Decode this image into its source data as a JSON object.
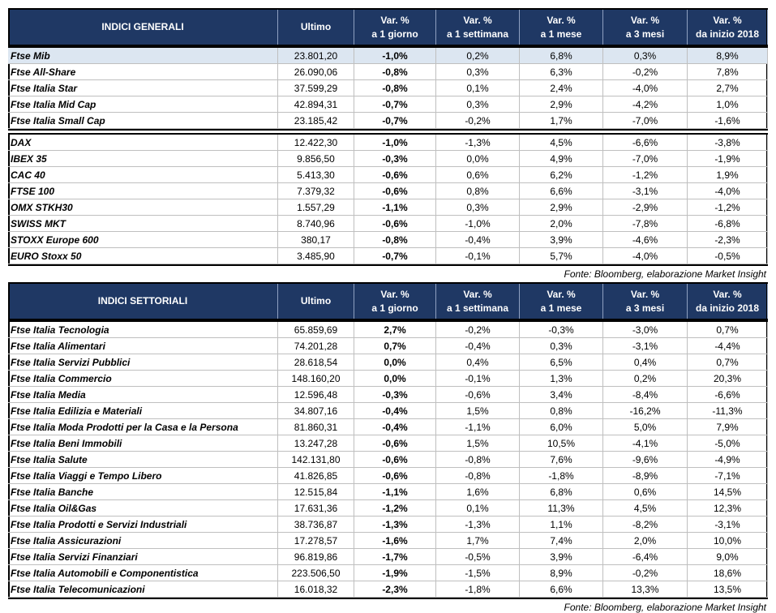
{
  "tables": [
    {
      "header": [
        [
          "INDICI GENERALI"
        ],
        [
          "Ultimo"
        ],
        [
          "Var. %",
          "a 1 giorno"
        ],
        [
          "Var. %",
          "a 1 settimana"
        ],
        [
          "Var. %",
          "a 1 mese"
        ],
        [
          "Var. %",
          "a 3 mesi"
        ],
        [
          "Var. %",
          "da inizio 2018"
        ]
      ],
      "groups": [
        [
          [
            "Ftse Mib",
            "23.801,20",
            "-1,0%",
            "0,2%",
            "6,8%",
            "0,3%",
            "8,9%"
          ],
          [
            "Ftse All-Share",
            "26.090,06",
            "-0,8%",
            "0,3%",
            "6,3%",
            "-0,2%",
            "7,8%"
          ],
          [
            "Ftse Italia Star",
            "37.599,29",
            "-0,8%",
            "0,1%",
            "2,4%",
            "-4,0%",
            "2,7%"
          ],
          [
            "Ftse Italia Mid Cap",
            "42.894,31",
            "-0,7%",
            "0,3%",
            "2,9%",
            "-4,2%",
            "1,0%"
          ],
          [
            "Ftse Italia Small Cap",
            "23.185,42",
            "-0,7%",
            "-0,2%",
            "1,7%",
            "-7,0%",
            "-1,6%"
          ]
        ],
        [
          [
            "DAX",
            "12.422,30",
            "-1,0%",
            "-1,3%",
            "4,5%",
            "-6,6%",
            "-3,8%"
          ],
          [
            "IBEX 35",
            "9.856,50",
            "-0,3%",
            "0,0%",
            "4,9%",
            "-7,0%",
            "-1,9%"
          ],
          [
            "CAC 40",
            "5.413,30",
            "-0,6%",
            "0,6%",
            "6,2%",
            "-1,2%",
            "1,9%"
          ],
          [
            "FTSE 100",
            "7.379,32",
            "-0,6%",
            "0,8%",
            "6,6%",
            "-3,1%",
            "-4,0%"
          ],
          [
            "OMX STKH30",
            "1.557,29",
            "-1,1%",
            "0,3%",
            "2,9%",
            "-2,9%",
            "-1,2%"
          ],
          [
            "SWISS MKT",
            "8.740,96",
            "-0,6%",
            "-1,0%",
            "2,0%",
            "-7,8%",
            "-6,8%"
          ],
          [
            "STOXX Europe 600",
            "380,17",
            "-0,8%",
            "-0,4%",
            "3,9%",
            "-4,6%",
            "-2,3%"
          ],
          [
            "EURO Stoxx 50",
            "3.485,90",
            "-0,7%",
            "-0,1%",
            "5,7%",
            "-4,0%",
            "-0,5%"
          ]
        ]
      ],
      "source": "Fonte: Bloomberg, elaborazione Market Insight"
    },
    {
      "header": [
        [
          "INDICI SETTORIALI"
        ],
        [
          "Ultimo"
        ],
        [
          "Var. %",
          "a 1 giorno"
        ],
        [
          "Var. %",
          "a 1 settimana"
        ],
        [
          "Var. %",
          "a 1 mese"
        ],
        [
          "Var. %",
          "a 3 mesi"
        ],
        [
          "Var. %",
          "da inizio 2018"
        ]
      ],
      "groups": [
        [
          [
            "Ftse Italia Tecnologia",
            "65.859,69",
            "2,7%",
            "-0,2%",
            "-0,3%",
            "-3,0%",
            "0,7%"
          ],
          [
            "Ftse Italia Alimentari",
            "74.201,28",
            "0,7%",
            "-0,4%",
            "0,3%",
            "-3,1%",
            "-4,4%"
          ],
          [
            "Ftse Italia Servizi Pubblici",
            "28.618,54",
            "0,0%",
            "0,4%",
            "6,5%",
            "0,4%",
            "0,7%"
          ],
          [
            "Ftse Italia Commercio",
            "148.160,20",
            "0,0%",
            "-0,1%",
            "1,3%",
            "0,2%",
            "20,3%"
          ],
          [
            "Ftse Italia Media",
            "12.596,48",
            "-0,3%",
            "-0,6%",
            "3,4%",
            "-8,4%",
            "-6,6%"
          ],
          [
            "Ftse Italia Edilizia e Materiali",
            "34.807,16",
            "-0,4%",
            "1,5%",
            "0,8%",
            "-16,2%",
            "-11,3%"
          ],
          [
            "Ftse Italia Moda Prodotti per la Casa e la Persona",
            "81.860,31",
            "-0,4%",
            "-1,1%",
            "6,0%",
            "5,0%",
            "7,9%"
          ],
          [
            "Ftse Italia Beni Immobili",
            "13.247,28",
            "-0,6%",
            "1,5%",
            "10,5%",
            "-4,1%",
            "-5,0%"
          ],
          [
            "Ftse Italia Salute",
            "142.131,80",
            "-0,6%",
            "-0,8%",
            "7,6%",
            "-9,6%",
            "-4,9%"
          ],
          [
            "Ftse Italia Viaggi e Tempo Libero",
            "41.826,85",
            "-0,6%",
            "-0,8%",
            "-1,8%",
            "-8,9%",
            "-7,1%"
          ],
          [
            "Ftse Italia Banche",
            "12.515,84",
            "-1,1%",
            "1,6%",
            "6,8%",
            "0,6%",
            "14,5%"
          ],
          [
            "Ftse Italia Oil&Gas",
            "17.631,36",
            "-1,2%",
            "0,1%",
            "11,3%",
            "4,5%",
            "12,3%"
          ],
          [
            "Ftse Italia Prodotti e Servizi Industriali",
            "38.736,87",
            "-1,3%",
            "-1,3%",
            "1,1%",
            "-8,2%",
            "-3,1%"
          ],
          [
            "Ftse Italia Assicurazioni",
            "17.278,57",
            "-1,6%",
            "1,7%",
            "7,4%",
            "2,0%",
            "10,0%"
          ],
          [
            "Ftse Italia Servizi Finanziari",
            "96.819,86",
            "-1,7%",
            "-0,5%",
            "3,9%",
            "-6,4%",
            "9,0%"
          ],
          [
            "Ftse Italia Automobili e Componentistica",
            "223.506,50",
            "-1,9%",
            "-1,5%",
            "8,9%",
            "-0,2%",
            "18,6%"
          ],
          [
            "Ftse Italia Telecomunicazioni",
            "16.018,32",
            "-2,3%",
            "-1,8%",
            "6,6%",
            "13,3%",
            "13,5%"
          ]
        ]
      ],
      "source": "Fonte: Bloomberg, elaborazione Market Insight"
    }
  ]
}
